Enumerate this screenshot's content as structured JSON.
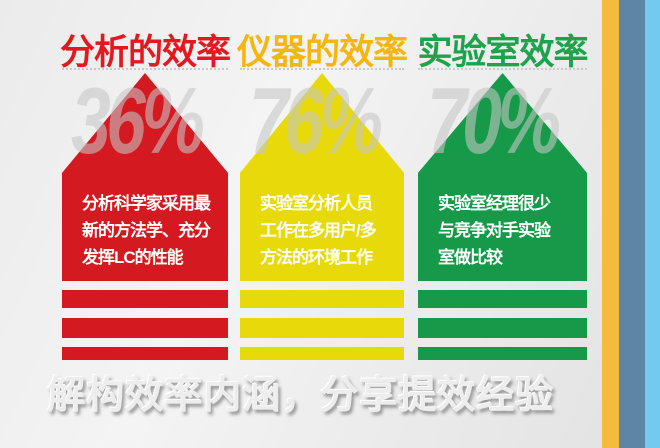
{
  "caption": "解构效率内涵，分享提效经验",
  "columns": [
    {
      "header": "分析的效率",
      "percent": "36%",
      "body_lines": [
        "分析科学家采用最",
        "新的方法学、充分",
        "发挥LC的性能"
      ],
      "arrow_color": "#d41920",
      "header_color": "#e2191f"
    },
    {
      "header": "仪器的效率",
      "percent": "76%",
      "body_lines": [
        "实验室分析人员",
        "工作在多用户/多",
        "方法的环境工作"
      ],
      "arrow_color": "#e7d90a",
      "header_color": "#f6b511"
    },
    {
      "header": "实验室效率",
      "percent": "70%",
      "body_lines": [
        "实验室经理很少",
        "与竞争对手实验",
        "室做比较"
      ],
      "arrow_color": "#169a49",
      "header_color": "#1ea24c"
    }
  ],
  "side_stripes": [
    {
      "name": "orange",
      "color": "#f6bb3c"
    },
    {
      "name": "steel-blue",
      "color": "#5e85a5"
    },
    {
      "name": "sky-blue",
      "color": "#73caf0"
    }
  ],
  "percent_overlay_color": "rgba(198,198,198,0.58)",
  "background_color": "#ededed",
  "chart_data": {
    "type": "bar",
    "categories": [
      "分析的效率",
      "仪器的效率",
      "实验室效率"
    ],
    "values": [
      36,
      76,
      70
    ],
    "value_format": "percent",
    "colors": [
      "#d41920",
      "#e7d90a",
      "#169a49"
    ],
    "title": "解构效率内涵，分享提效经验",
    "annotations": [
      "分析科学家采用最新的方法学、充分发挥LC的性能",
      "实验室分析人员工作在多用户/多方法的环境工作",
      "实验室经理很少与竞争对手实验室做比较"
    ],
    "legend": "none",
    "grid": false
  }
}
